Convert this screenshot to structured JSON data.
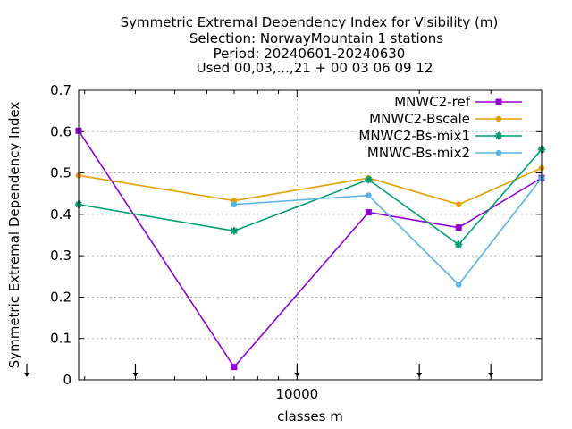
{
  "chart_data": {
    "type": "line",
    "title_lines": [
      "Symmetric Extremal Dependency Index  for Visibility (m)",
      "Selection: NorwayMountain      1 stations",
      "Period: 20240601-20240630",
      "Used 00,03,...,21 + 00 03 06 09 12"
    ],
    "xlabel": "classes m",
    "ylabel": "Symmetric Extremal Dependency Index",
    "xscale": "log",
    "xlim": [
      2900,
      40000
    ],
    "ylim": [
      0,
      0.7
    ],
    "y_ticks": [
      0,
      0.1,
      0.2,
      0.3,
      0.4,
      0.5,
      0.6,
      0.7
    ],
    "y_tick_labels": [
      "0",
      "0.1",
      "0.2",
      "0.3",
      "0.4",
      "0.5",
      "0.6",
      "0.7"
    ],
    "x_tick_labels": [
      "10000"
    ],
    "x_major_ticks": [
      10000
    ],
    "x_minor_ticks": [
      3000,
      4000,
      5000,
      6000,
      7000,
      8000,
      9000,
      20000,
      30000,
      40000
    ],
    "x_grid": [
      10000
    ],
    "arrow_markers_x": [
      2900,
      4000,
      10000,
      20000,
      30000
    ],
    "grid": true,
    "legend_position": "top-right",
    "series": [
      {
        "name": "MNWC2-ref",
        "color": "#9400d3",
        "marker": "square",
        "x": [
          2900,
          7000,
          15000,
          25000,
          40000
        ],
        "y": [
          0.602,
          0.031,
          0.405,
          0.368,
          0.488
        ]
      },
      {
        "name": "MNWC2-Bscale",
        "color": "#e69f00",
        "marker": "circle",
        "x": [
          2900,
          7000,
          15000,
          25000,
          40000
        ],
        "y": [
          0.494,
          0.433,
          0.488,
          0.424,
          0.512
        ]
      },
      {
        "name": "MNWC2-Bs-mix1",
        "color": "#009e73",
        "marker": "star",
        "x": [
          2900,
          7000,
          15000,
          25000,
          40000
        ],
        "y": [
          0.424,
          0.36,
          0.484,
          0.327,
          0.557
        ]
      },
      {
        "name": "MNWC-Bs-mix2",
        "color": "#56b4e9",
        "marker": "circle",
        "x": [
          7000,
          15000,
          25000,
          40000
        ],
        "y": [
          0.424,
          0.446,
          0.23,
          0.488
        ]
      }
    ]
  }
}
